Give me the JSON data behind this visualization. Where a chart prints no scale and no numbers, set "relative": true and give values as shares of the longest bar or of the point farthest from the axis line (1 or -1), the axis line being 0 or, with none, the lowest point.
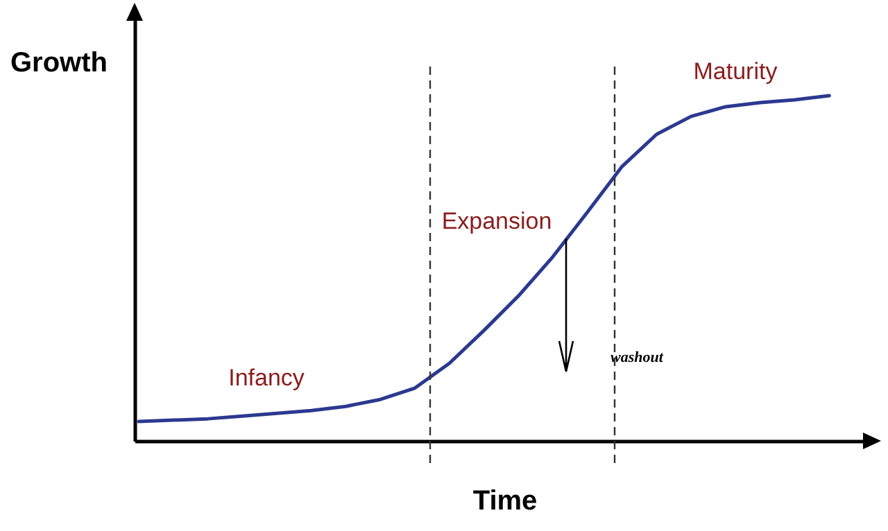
{
  "chart_data": {
    "type": "line",
    "relative": true,
    "xlabel": "Time",
    "ylabel": "Growth",
    "categories": [
      null,
      null,
      null,
      null,
      null,
      null,
      null,
      null,
      null,
      null,
      null,
      null,
      null,
      null,
      null,
      null,
      null,
      null,
      null,
      null,
      null
    ],
    "series": [
      {
        "color": "#2b3990",
        "values": [
          0.056,
          0.06,
          0.064,
          0.072,
          0.08,
          0.088,
          0.1,
          0.12,
          0.153,
          0.225,
          0.32,
          0.42,
          0.534,
          0.663,
          0.795,
          0.888,
          0.94,
          0.968,
          0.98,
          0.988,
          1.0
        ]
      }
    ],
    "annotations": [
      "Infancy",
      "Expansion",
      "Maturity",
      "washout"
    ],
    "marker": "none",
    "line_style": "solid"
  }
}
